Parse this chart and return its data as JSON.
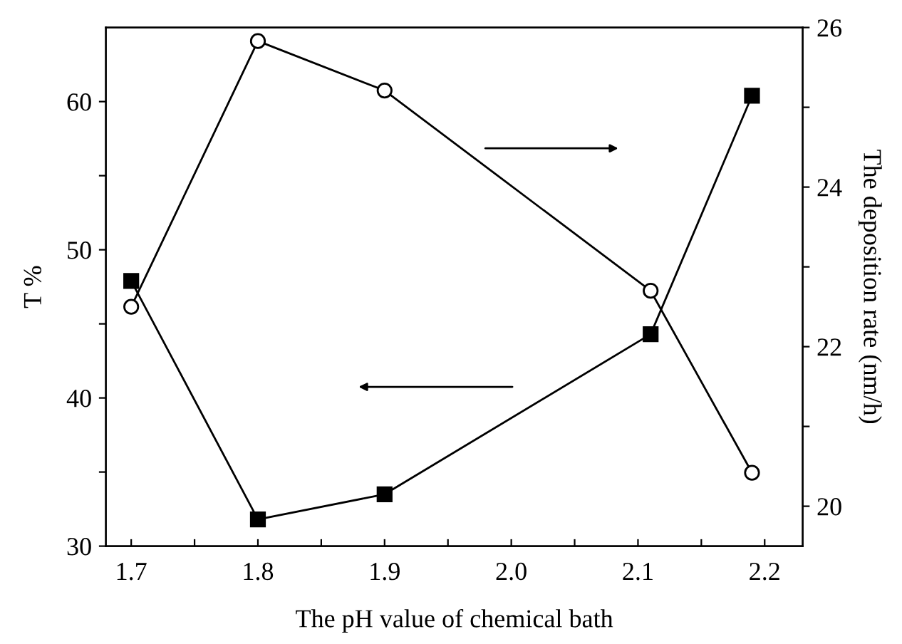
{
  "chart_data": {
    "type": "line",
    "xlabel": "The pH value of chemical bath",
    "ylabel": "T %",
    "y2label": "The deposition rate (nm/h)",
    "xlim": [
      1.68,
      2.23
    ],
    "xticks": [
      1.7,
      {
        "value": 1.75,
        "label": null
      },
      1.8,
      {
        "value": 1.85,
        "label": null
      },
      1.9,
      {
        "value": 1.95,
        "label": null
      },
      {
        "value": 2.0,
        "label": "2.0"
      },
      {
        "value": 2.05,
        "label": null
      },
      2.1,
      {
        "value": 2.15,
        "label": null
      },
      2.2
    ],
    "ylim": [
      30,
      65
    ],
    "yticks": [
      30,
      {
        "value": 35,
        "label": null
      },
      40,
      {
        "value": 45,
        "label": null
      },
      50,
      {
        "value": 55,
        "label": null
      },
      60
    ],
    "y2lim": [
      19.5,
      26
    ],
    "y2ticks": [
      20,
      {
        "value": 21,
        "label": null
      },
      22,
      {
        "value": 23,
        "label": null
      },
      24,
      {
        "value": 25,
        "label": null
      },
      26
    ],
    "grid": false,
    "legend": false,
    "line_style": "solid",
    "series": [
      {
        "x": [
          1.7,
          1.8,
          1.9,
          2.11,
          2.19
        ],
        "values": [
          47.9,
          31.8,
          33.5,
          44.3,
          60.4
        ],
        "color": "#000000",
        "marker": "square"
      },
      {
        "x": [
          1.7,
          1.8,
          1.9,
          2.11,
          2.19
        ],
        "values": [
          22.5,
          25.83,
          25.21,
          22.7,
          20.42
        ],
        "color": "#000000",
        "marker": "circle",
        "axis": "y2"
      }
    ]
  }
}
